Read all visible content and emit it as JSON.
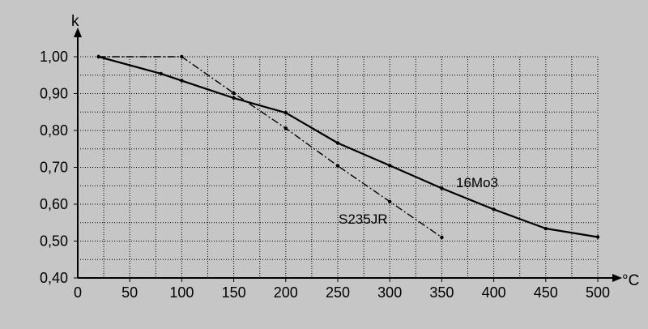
{
  "chart_data": {
    "type": "line",
    "title": "",
    "xlabel": "°C",
    "ylabel": "k",
    "xlim": [
      0,
      500
    ],
    "ylim": [
      0.4,
      1.0
    ],
    "grid": true,
    "xticks": [
      0,
      50,
      100,
      150,
      200,
      250,
      300,
      350,
      400,
      450,
      500
    ],
    "xtick_labels": [
      "0",
      "50",
      "100",
      "150",
      "200",
      "250",
      "300",
      "350",
      "400",
      "450",
      "500"
    ],
    "yticks": [
      0.4,
      0.5,
      0.6,
      0.7,
      0.8,
      0.9,
      1.0
    ],
    "ytick_labels": [
      "0,40",
      "0,50",
      "0,60",
      "0,70",
      "0,80",
      "0,90",
      "1,00"
    ],
    "series": [
      {
        "name": "16Mo3",
        "line_style": "solid",
        "color": "#000000",
        "x": [
          20,
          80,
          100,
          150,
          200,
          250,
          300,
          350,
          400,
          450,
          500
        ],
        "y": [
          1.0,
          0.954,
          0.935,
          0.888,
          0.848,
          0.766,
          0.705,
          0.643,
          0.586,
          0.534,
          0.511
        ]
      },
      {
        "name": "S235JR",
        "line_style": "dash-dot",
        "color": "#000000",
        "x": [
          20,
          100,
          150,
          200,
          250,
          300,
          350
        ],
        "y": [
          1.0,
          1.0,
          0.901,
          0.806,
          0.704,
          0.607,
          0.51
        ]
      }
    ]
  }
}
